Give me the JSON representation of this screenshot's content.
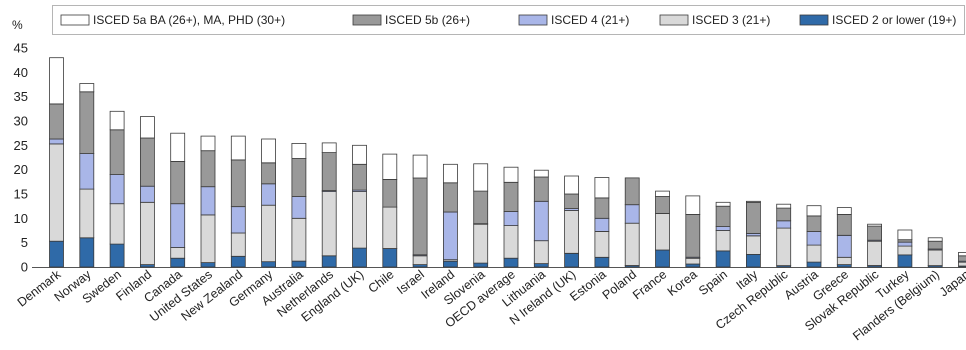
{
  "chart_data": {
    "type": "bar",
    "stacked": true,
    "y_unit": "%",
    "ylim": [
      0,
      45
    ],
    "yticks": [
      0,
      5,
      10,
      15,
      20,
      25,
      30,
      35,
      40,
      45
    ],
    "grid": false,
    "legend_position": "top",
    "categories": [
      "Denmark",
      "Norway",
      "Sweden",
      "Finland",
      "Canada",
      "United States",
      "New Zealand",
      "Germany",
      "Australia",
      "Netherlands",
      "England (UK)",
      "Chile",
      "Israel",
      "Ireland",
      "Slovenia",
      "OECD average",
      "Lithuania",
      "N Ireland (UK)",
      "Estonia",
      "Poland",
      "France",
      "Korea",
      "Spain",
      "Italy",
      "Czech Republic",
      "Austria",
      "Greece",
      "Slovak Republic",
      "Turkey",
      "Flanders (Belgium)",
      "Japan"
    ],
    "series": [
      {
        "name": "ISCED 2 or lower (19+)",
        "color": "#2f6aa8",
        "values": [
          5.3,
          6.0,
          4.7,
          0.5,
          1.8,
          0.9,
          2.2,
          1.1,
          1.2,
          2.3,
          3.9,
          3.8,
          0.5,
          1.2,
          0.8,
          1.8,
          0.7,
          2.8,
          2.0,
          0.3,
          3.5,
          0.6,
          3.3,
          2.6,
          0.3,
          1.0,
          0.5,
          0.3,
          2.5,
          0.3,
          0.2
        ]
      },
      {
        "name": "ISCED 3 (21+)",
        "color": "#d9d9d9",
        "values": [
          20.0,
          10.0,
          8.3,
          12.8,
          2.2,
          9.8,
          4.8,
          11.6,
          8.8,
          13.2,
          11.6,
          8.5,
          1.8,
          0.3,
          8.0,
          6.7,
          4.7,
          8.8,
          5.3,
          8.7,
          7.5,
          1.2,
          4.2,
          3.8,
          7.7,
          3.5,
          1.5,
          5.0,
          1.8,
          3.2,
          0.8
        ]
      },
      {
        "name": "ISCED 4 (21+)",
        "color": "#a9b6e8",
        "values": [
          1.0,
          7.3,
          6.0,
          3.3,
          9.0,
          5.8,
          5.4,
          4.4,
          4.5,
          0.2,
          0.3,
          0.0,
          0.2,
          9.8,
          0.1,
          2.9,
          8.1,
          0.4,
          2.7,
          3.8,
          0.0,
          0.2,
          0.8,
          0.5,
          1.5,
          2.8,
          4.5,
          0.2,
          0.8,
          0.2,
          0.2
        ]
      },
      {
        "name": "ISCED 5b (26+)",
        "color": "#999999",
        "values": [
          7.2,
          12.7,
          9.2,
          9.9,
          8.7,
          7.4,
          9.6,
          4.3,
          7.8,
          7.8,
          5.3,
          5.7,
          15.8,
          6.0,
          6.7,
          6.0,
          5.0,
          3.0,
          4.2,
          5.5,
          3.5,
          8.8,
          4.2,
          6.4,
          2.6,
          3.2,
          4.3,
          2.9,
          0.5,
          1.6,
          1.1
        ]
      },
      {
        "name": "ISCED 5a BA (26+), MA, PHD (30+)",
        "color": "#ffffff",
        "values": [
          9.5,
          1.7,
          3.8,
          4.4,
          5.8,
          3.0,
          4.9,
          4.9,
          3.1,
          2.0,
          3.9,
          5.2,
          4.7,
          3.8,
          5.6,
          3.1,
          1.4,
          3.7,
          4.2,
          0.0,
          1.1,
          3.8,
          0.8,
          0.2,
          0.8,
          2.1,
          1.4,
          0.4,
          2.0,
          0.7,
          0.7
        ]
      }
    ]
  }
}
